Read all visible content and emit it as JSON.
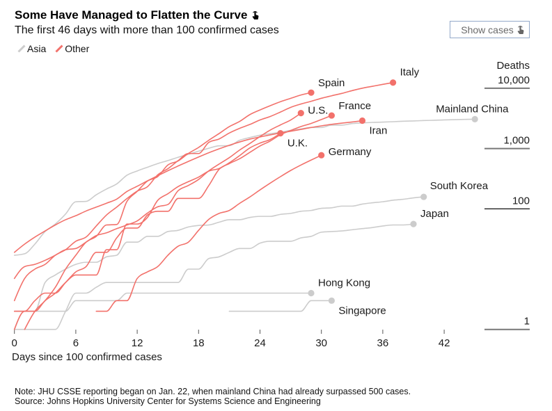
{
  "header": {
    "title": "Some Have Managed to Flatten the Curve",
    "title_icon": "hand-pointer-icon",
    "subtitle": "The first 46 days with more than 100 confirmed cases"
  },
  "toggle": {
    "label": "Show cases",
    "icon": "hand-pointer-icon"
  },
  "legend": [
    {
      "label": "Asia",
      "color": "#cccccc"
    },
    {
      "label": "Other",
      "color": "#f2716b"
    }
  ],
  "footer": {
    "note": "Note: JHU CSSE reporting began on Jan. 22, when mainland China had already surpassed 500 cases.",
    "source": "Source: Johns Hopkins University Center for Systems Science and Engineering"
  },
  "chart_data": {
    "type": "line",
    "title": "Some Have Managed to Flatten the Curve",
    "subtitle": "The first 46 days with more than 100 confirmed cases",
    "xlabel": "Days since 100 confirmed cases",
    "ylabel": "Deaths",
    "yscale": "log",
    "xlim": [
      0,
      45
    ],
    "ylim": [
      1,
      12500
    ],
    "xticks": [
      0,
      6,
      12,
      18,
      24,
      30,
      36,
      42
    ],
    "xtick_labels": [
      "0",
      "6",
      "12",
      "18",
      "24",
      "30",
      "36",
      "42"
    ],
    "yticks": [
      10000,
      1000,
      100,
      1
    ],
    "ytick_labels": [
      "10,000",
      "1,000",
      "100",
      "1"
    ],
    "grid": false,
    "legend": "top-left",
    "group_colors": {
      "Asia": "#cccccc",
      "Other": "#f2716b"
    },
    "series": [
      {
        "name": "Mainland China",
        "group": "Asia",
        "start_day": 0,
        "values": [
          17,
          18,
          26,
          42,
          56,
          82,
          131,
          133,
          171,
          213,
          259,
          361,
          425,
          490,
          562,
          632,
          717,
          804,
          904,
          1011,
          1111,
          1116,
          1368,
          1520,
          1662,
          1765,
          1863,
          2002,
          2114,
          2236,
          2236,
          2441,
          2443,
          2593,
          2663,
          2715,
          2744,
          2788,
          2835,
          2870,
          2912,
          2945,
          2981,
          3013,
          3042,
          3070
        ]
      },
      {
        "name": "South Korea",
        "group": "Asia",
        "start_day": 0,
        "values": [
          1,
          2,
          2,
          6,
          8,
          10,
          12,
          13,
          13,
          16,
          17,
          28,
          28,
          35,
          35,
          42,
          44,
          50,
          53,
          54,
          60,
          66,
          66,
          72,
          75,
          75,
          81,
          84,
          91,
          94,
          102,
          104,
          111,
          111,
          120,
          126,
          131,
          139,
          144,
          152,
          158
        ]
      },
      {
        "name": "Japan",
        "group": "Asia",
        "start_day": 0,
        "values": [
          1,
          1,
          1,
          1,
          1,
          2,
          4,
          4,
          5,
          6,
          6,
          6,
          6,
          6,
          6,
          6,
          6,
          10,
          10,
          15,
          16,
          19,
          22,
          22,
          27,
          29,
          29,
          29,
          33,
          35,
          41,
          42,
          43,
          45,
          47,
          49,
          52,
          54,
          54,
          56
        ]
      },
      {
        "name": "Hong Kong",
        "group": "Asia",
        "start_day": 0,
        "values": [
          2,
          2,
          2,
          2,
          2,
          2,
          3,
          3,
          3,
          3,
          3,
          4,
          4,
          4,
          4,
          4,
          4,
          4,
          4,
          4,
          4,
          4,
          4,
          4,
          4,
          4,
          4,
          4,
          4,
          4
        ]
      },
      {
        "name": "Singapore",
        "group": "Asia",
        "start_day": 21,
        "values": [
          2,
          2,
          2,
          2,
          2,
          2,
          2,
          2,
          3,
          3,
          3
        ]
      },
      {
        "name": "Italy",
        "group": "Other",
        "start_day": 0,
        "values": [
          3,
          7,
          10,
          12,
          17,
          21,
          29,
          34,
          52,
          79,
          107,
          148,
          197,
          233,
          366,
          463,
          631,
          827,
          827,
          1266,
          1441,
          1809,
          2158,
          2503,
          2978,
          3405,
          4032,
          4825,
          5476,
          6077,
          6820,
          7503,
          8215,
          9134,
          10023,
          10779,
          11591,
          12428
        ]
      },
      {
        "name": "Spain",
        "group": "Other",
        "start_day": 1,
        "values": [
          1,
          2,
          3,
          5,
          10,
          17,
          28,
          35,
          54,
          55,
          133,
          195,
          289,
          342,
          533,
          623,
          830,
          1043,
          1375,
          1772,
          2311,
          2808,
          3647,
          4365,
          5138,
          5982,
          6803,
          7716,
          8464
        ]
      },
      {
        "name": "U.S.",
        "group": "Other",
        "start_day": 0,
        "values": [
          7,
          11,
          12,
          14,
          17,
          21,
          22,
          28,
          36,
          40,
          47,
          54,
          63,
          85,
          108,
          118,
          200,
          244,
          307,
          427,
          552,
          706,
          942,
          1209,
          1581,
          2026,
          2467,
          2978,
          3873
        ]
      },
      {
        "name": "France",
        "group": "Other",
        "start_day": 0,
        "values": [
          2,
          2,
          3,
          4,
          4,
          6,
          9,
          11,
          19,
          19,
          33,
          48,
          48,
          79,
          91,
          91,
          149,
          149,
          149,
          244,
          451,
          563,
          676,
          862,
          1102,
          1333,
          1698,
          1997,
          2317,
          2611,
          3030,
          3532
        ]
      },
      {
        "name": "Iran",
        "group": "Other",
        "start_day": 0,
        "values": [
          19,
          26,
          34,
          43,
          54,
          66,
          77,
          92,
          107,
          124,
          145,
          194,
          237,
          291,
          354,
          429,
          514,
          611,
          724,
          853,
          988,
          1135,
          1284,
          1433,
          1556,
          1685,
          1812,
          1934,
          2077,
          2234,
          2378,
          2517,
          2640,
          2757,
          2898
        ]
      },
      {
        "name": "U.K.",
        "group": "Other",
        "start_day": 0,
        "values": [
          1,
          2,
          2,
          3,
          4,
          6,
          8,
          8,
          8,
          21,
          21,
          56,
          56,
          72,
          138,
          178,
          234,
          282,
          336,
          423,
          466,
          580,
          761,
          1021,
          1231,
          1411,
          1793
        ]
      },
      {
        "name": "Germany",
        "group": "Other",
        "start_day": 8,
        "values": [
          2,
          2,
          3,
          3,
          7,
          9,
          11,
          17,
          24,
          28,
          44,
          67,
          84,
          94,
          123,
          157,
          206,
          267,
          342,
          433,
          533,
          645,
          775
        ]
      }
    ]
  }
}
